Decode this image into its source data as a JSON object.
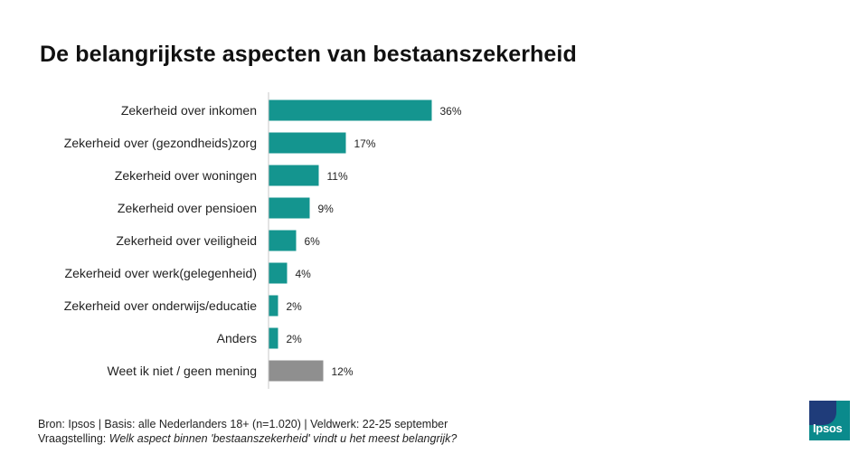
{
  "title": "De belangrijkste aspecten van bestaanszekerheid",
  "chart_data": {
    "type": "bar",
    "orientation": "horizontal",
    "categories": [
      "Zekerheid over inkomen",
      "Zekerheid over (gezondheids)zorg",
      "Zekerheid over woningen",
      "Zekerheid over pensioen",
      "Zekerheid over veiligheid",
      "Zekerheid over werk(gelegenheid)",
      "Zekerheid over onderwijs/educatie",
      "Anders",
      "Weet ik niet / geen mening"
    ],
    "values": [
      36,
      17,
      11,
      9,
      6,
      4,
      2,
      2,
      12
    ],
    "value_labels": [
      "36%",
      "17%",
      "11%",
      "9%",
      "6%",
      "4%",
      "2%",
      "2%",
      "12%"
    ],
    "colors": [
      "#14958f",
      "#14958f",
      "#14958f",
      "#14958f",
      "#14958f",
      "#14958f",
      "#14958f",
      "#14958f",
      "#8f8f8f"
    ],
    "xlim": [
      0,
      36
    ],
    "grid": false,
    "legend": "none"
  },
  "footer": {
    "source": "Bron: Ipsos | Basis: alle Nederlanders  18+ (n=1.020)  | Veldwerk: 22-25  september",
    "question_label": "Vraagstelling: ",
    "question": "Welk aspect binnen 'bestaanszekerheid' vindt u het meest belangrijk?"
  },
  "logo": {
    "text": "Ipsos",
    "brand_color": "#0a8a8c",
    "inner_color": "#1f3c7a"
  }
}
